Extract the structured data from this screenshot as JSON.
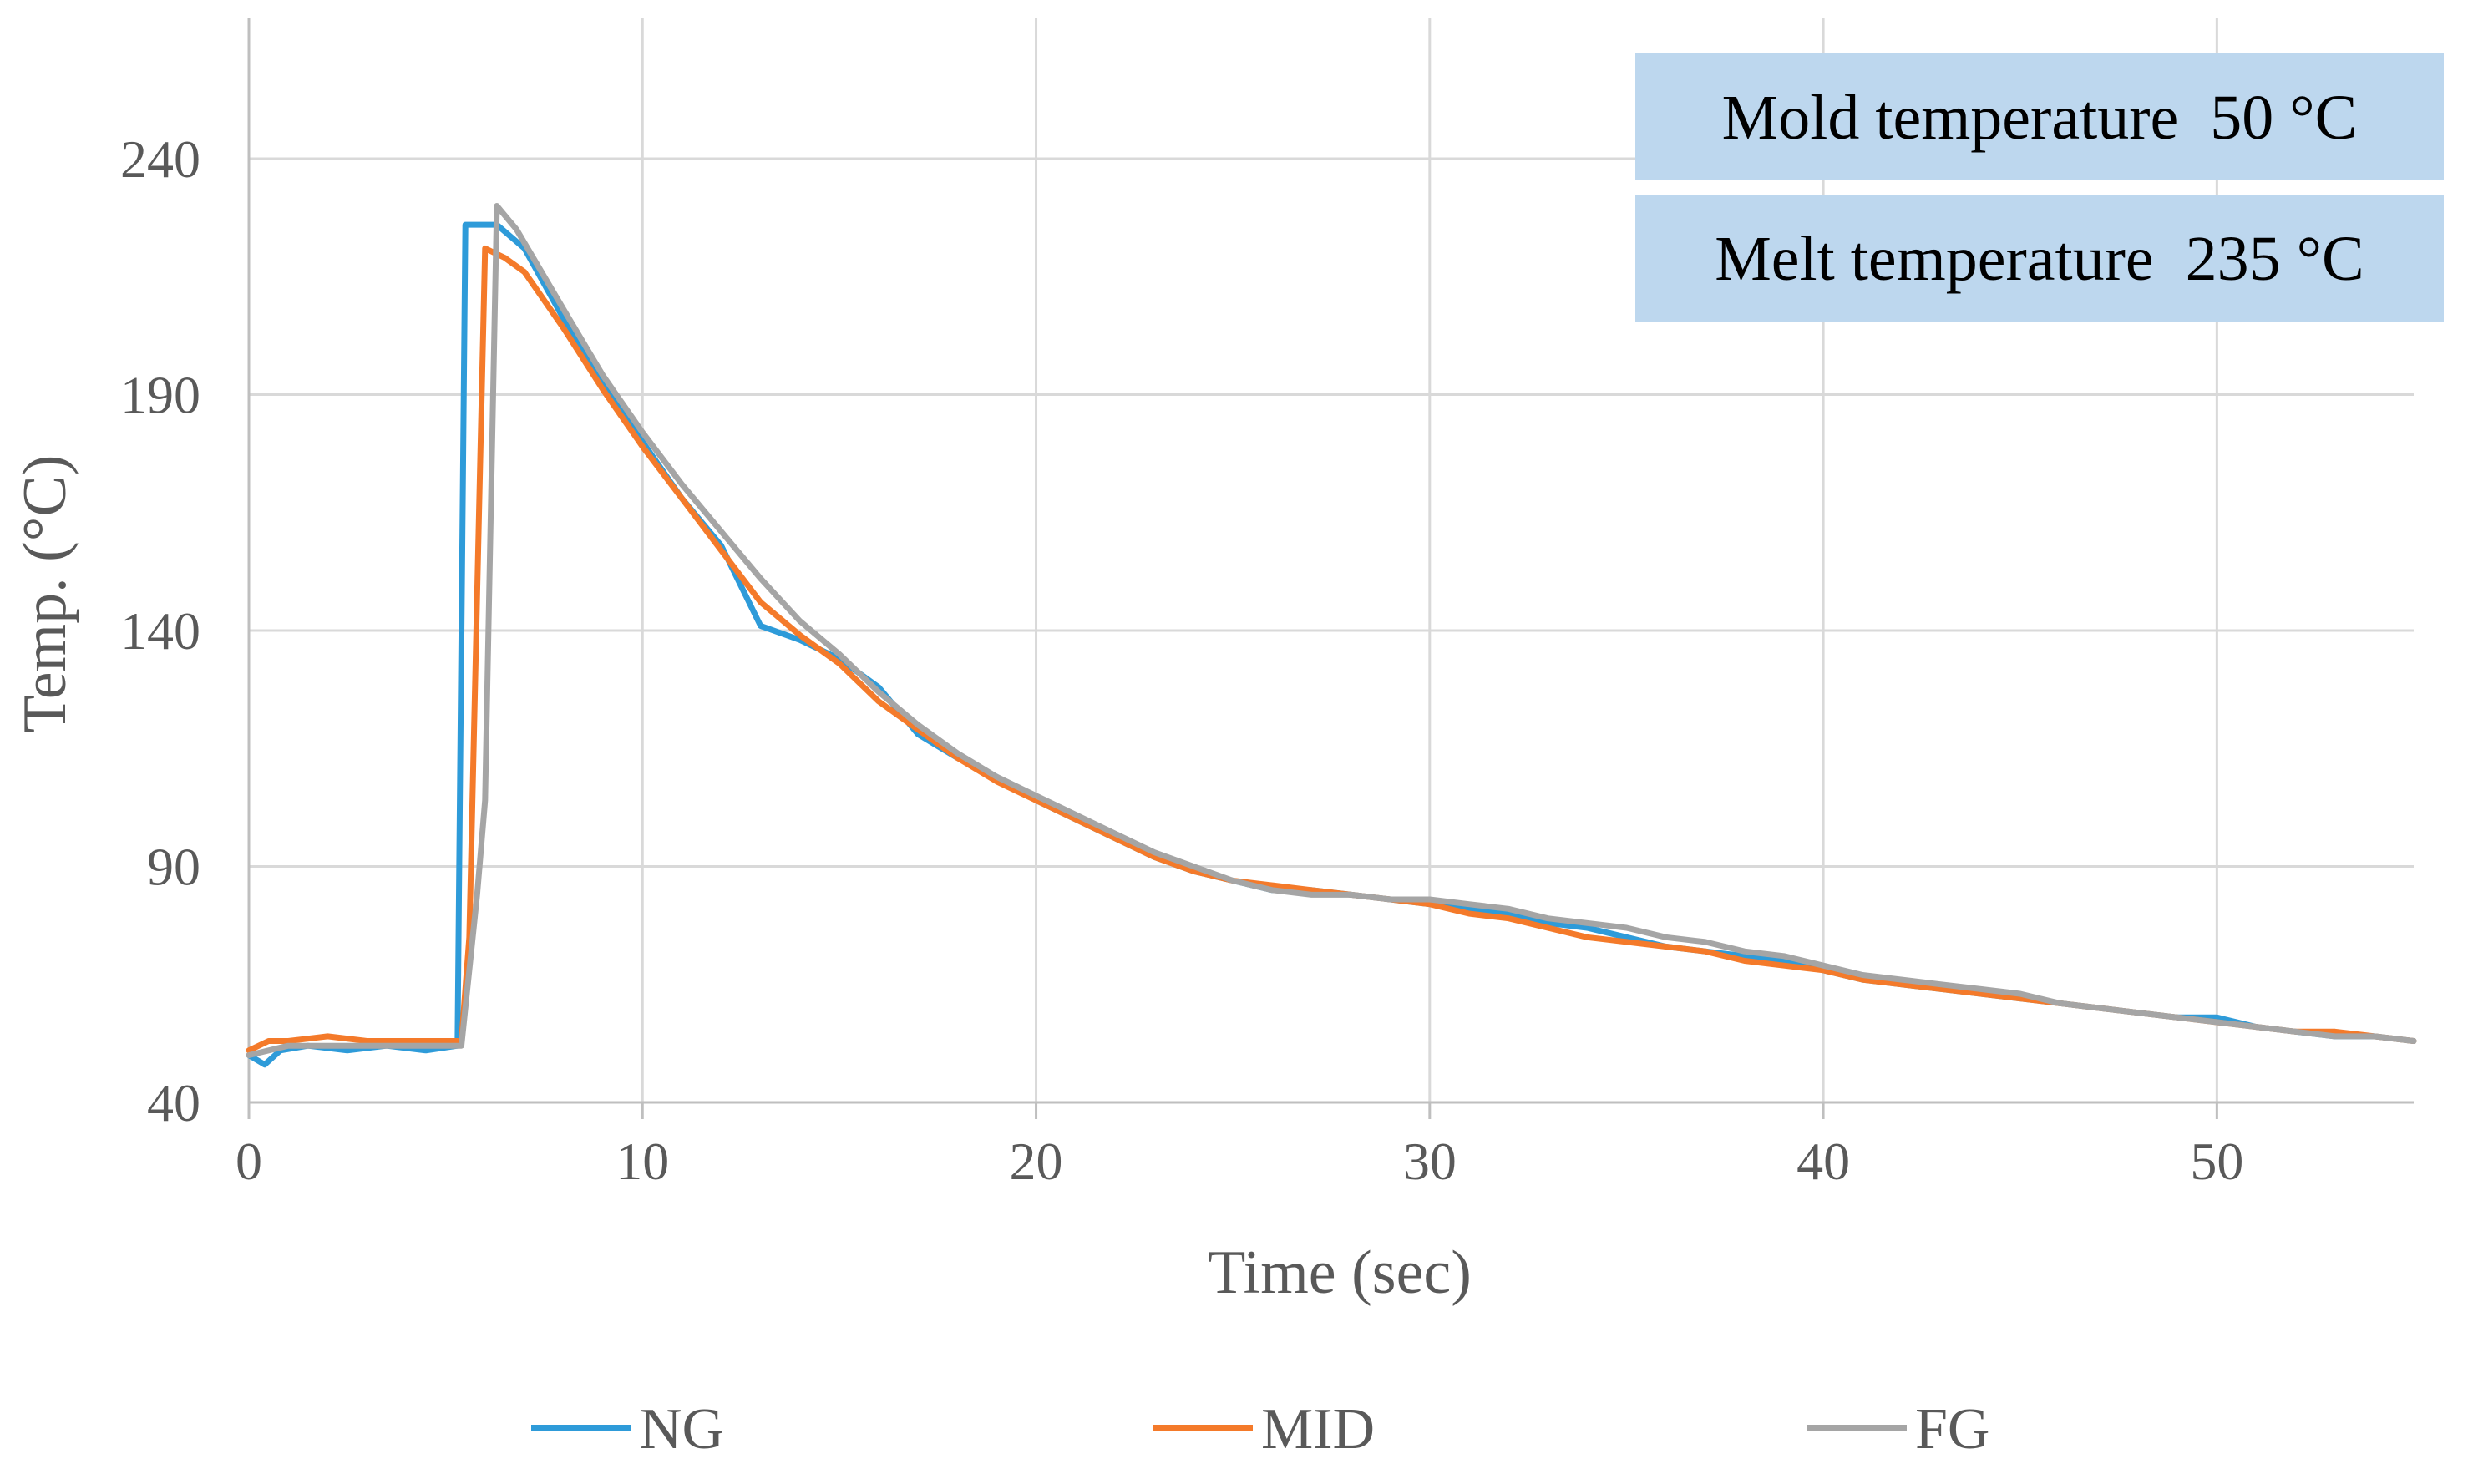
{
  "chart_data": {
    "type": "line",
    "title": "",
    "xlabel": "Time (sec)",
    "ylabel": "Temp. (°C)",
    "xlim": [
      0,
      55
    ],
    "ylim": [
      40,
      240
    ],
    "x_ticks": [
      0,
      10,
      20,
      30,
      40,
      50
    ],
    "y_ticks": [
      40,
      90,
      140,
      190,
      240
    ],
    "x_tick_labels": [
      "0",
      "10",
      "20",
      "30",
      "40",
      "50"
    ],
    "y_tick_labels": [
      "40",
      "90",
      "140",
      "190",
      "240"
    ],
    "grid": true,
    "legend_position": "bottom",
    "annotations": [
      "Mold temperature  50 °C",
      "Melt temperature  235 °C"
    ],
    "annotation_bg": "#bdd7ee",
    "series": [
      {
        "name": "NG",
        "color": "#2e9bd9",
        "points": [
          [
            0,
            50
          ],
          [
            0.4,
            48
          ],
          [
            0.8,
            51
          ],
          [
            1.5,
            52
          ],
          [
            2.5,
            51
          ],
          [
            3.5,
            52
          ],
          [
            4.5,
            51
          ],
          [
            5.3,
            52
          ],
          [
            5.5,
            226
          ],
          [
            6.3,
            226
          ],
          [
            7,
            221
          ],
          [
            8,
            206
          ],
          [
            9,
            192
          ],
          [
            10,
            180
          ],
          [
            11,
            168
          ],
          [
            12,
            158
          ],
          [
            13,
            141
          ],
          [
            14,
            138
          ],
          [
            15,
            134
          ],
          [
            16,
            128
          ],
          [
            17,
            118
          ],
          [
            18,
            113
          ],
          [
            19,
            109
          ],
          [
            20,
            104
          ],
          [
            21,
            100
          ],
          [
            22,
            96
          ],
          [
            23,
            92
          ],
          [
            24,
            89
          ],
          [
            25,
            87
          ],
          [
            26,
            85
          ],
          [
            27,
            85
          ],
          [
            28,
            84
          ],
          [
            29,
            83
          ],
          [
            30,
            82
          ],
          [
            31,
            81
          ],
          [
            32,
            80
          ],
          [
            33,
            78
          ],
          [
            34,
            77
          ],
          [
            35,
            75
          ],
          [
            36,
            73
          ],
          [
            37,
            72
          ],
          [
            38,
            71
          ],
          [
            39,
            70
          ],
          [
            40,
            68
          ],
          [
            41,
            66
          ],
          [
            42,
            65
          ],
          [
            43,
            64
          ],
          [
            44,
            63
          ],
          [
            45,
            62
          ],
          [
            46,
            61
          ],
          [
            47,
            60
          ],
          [
            48,
            59
          ],
          [
            49,
            58
          ],
          [
            50,
            58
          ],
          [
            51,
            56
          ],
          [
            52,
            55
          ],
          [
            53,
            54
          ],
          [
            54,
            54
          ],
          [
            55,
            53
          ]
        ]
      },
      {
        "name": "MID",
        "color": "#f47a2a",
        "points": [
          [
            0,
            51
          ],
          [
            0.5,
            53
          ],
          [
            1,
            53
          ],
          [
            2,
            54
          ],
          [
            3,
            53
          ],
          [
            4,
            53
          ],
          [
            5,
            53
          ],
          [
            5.4,
            53
          ],
          [
            5.6,
            75
          ],
          [
            6,
            221
          ],
          [
            6.5,
            219
          ],
          [
            7,
            216
          ],
          [
            8,
            204
          ],
          [
            9,
            191
          ],
          [
            10,
            179
          ],
          [
            11,
            168
          ],
          [
            12,
            157
          ],
          [
            13,
            146
          ],
          [
            14,
            139
          ],
          [
            15,
            133
          ],
          [
            16,
            125
          ],
          [
            17,
            119
          ],
          [
            18,
            113
          ],
          [
            19,
            108
          ],
          [
            20,
            104
          ],
          [
            21,
            100
          ],
          [
            22,
            96
          ],
          [
            23,
            92
          ],
          [
            24,
            89
          ],
          [
            25,
            87
          ],
          [
            26,
            86
          ],
          [
            27,
            85
          ],
          [
            28,
            84
          ],
          [
            29,
            83
          ],
          [
            30,
            82
          ],
          [
            31,
            80
          ],
          [
            32,
            79
          ],
          [
            33,
            77
          ],
          [
            34,
            75
          ],
          [
            35,
            74
          ],
          [
            36,
            73
          ],
          [
            37,
            72
          ],
          [
            38,
            70
          ],
          [
            39,
            69
          ],
          [
            40,
            68
          ],
          [
            41,
            66
          ],
          [
            42,
            65
          ],
          [
            43,
            64
          ],
          [
            44,
            63
          ],
          [
            45,
            62
          ],
          [
            46,
            61
          ],
          [
            47,
            60
          ],
          [
            48,
            59
          ],
          [
            49,
            58
          ],
          [
            50,
            57
          ],
          [
            51,
            56
          ],
          [
            52,
            55
          ],
          [
            53,
            55
          ],
          [
            54,
            54
          ],
          [
            55,
            53
          ]
        ]
      },
      {
        "name": "FG",
        "color": "#a5a5a5",
        "points": [
          [
            0,
            50
          ],
          [
            0.5,
            51
          ],
          [
            1,
            52
          ],
          [
            2,
            52
          ],
          [
            3,
            52
          ],
          [
            4,
            52
          ],
          [
            5,
            52
          ],
          [
            5.4,
            52
          ],
          [
            5.8,
            84
          ],
          [
            6,
            104
          ],
          [
            6.3,
            230
          ],
          [
            6.8,
            225
          ],
          [
            8,
            208
          ],
          [
            9,
            194
          ],
          [
            10,
            182
          ],
          [
            11,
            171
          ],
          [
            12,
            161
          ],
          [
            13,
            151
          ],
          [
            14,
            142
          ],
          [
            15,
            135
          ],
          [
            16,
            127
          ],
          [
            17,
            120
          ],
          [
            18,
            114
          ],
          [
            19,
            109
          ],
          [
            20,
            105
          ],
          [
            21,
            101
          ],
          [
            22,
            97
          ],
          [
            23,
            93
          ],
          [
            24,
            90
          ],
          [
            25,
            87
          ],
          [
            26,
            85
          ],
          [
            27,
            84
          ],
          [
            28,
            84
          ],
          [
            29,
            83
          ],
          [
            30,
            83
          ],
          [
            31,
            82
          ],
          [
            32,
            81
          ],
          [
            33,
            79
          ],
          [
            34,
            78
          ],
          [
            35,
            77
          ],
          [
            36,
            75
          ],
          [
            37,
            74
          ],
          [
            38,
            72
          ],
          [
            39,
            71
          ],
          [
            40,
            69
          ],
          [
            41,
            67
          ],
          [
            42,
            66
          ],
          [
            43,
            65
          ],
          [
            44,
            64
          ],
          [
            45,
            63
          ],
          [
            46,
            61
          ],
          [
            47,
            60
          ],
          [
            48,
            59
          ],
          [
            49,
            58
          ],
          [
            50,
            57
          ],
          [
            51,
            56
          ],
          [
            52,
            55
          ],
          [
            53,
            54
          ],
          [
            54,
            54
          ],
          [
            55,
            53
          ]
        ]
      }
    ]
  }
}
